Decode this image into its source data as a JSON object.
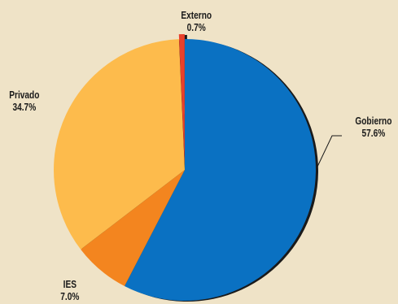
{
  "chart_data": {
    "type": "pie",
    "categories": [
      "Gobierno",
      "IES",
      "Privado",
      "Externo"
    ],
    "values": [
      57.6,
      7.0,
      34.7,
      0.7
    ],
    "value_labels": [
      "57.6%",
      "7.0%",
      "34.7%",
      "0.7%"
    ],
    "colors": [
      "#0a71c2",
      "#f3851f",
      "#fdbb4c",
      "#e8412c"
    ],
    "exploded": [
      "Externo"
    ],
    "legend": "none"
  },
  "colors": {
    "background": "#efe3c7",
    "shadow": "#1a1a1a"
  }
}
